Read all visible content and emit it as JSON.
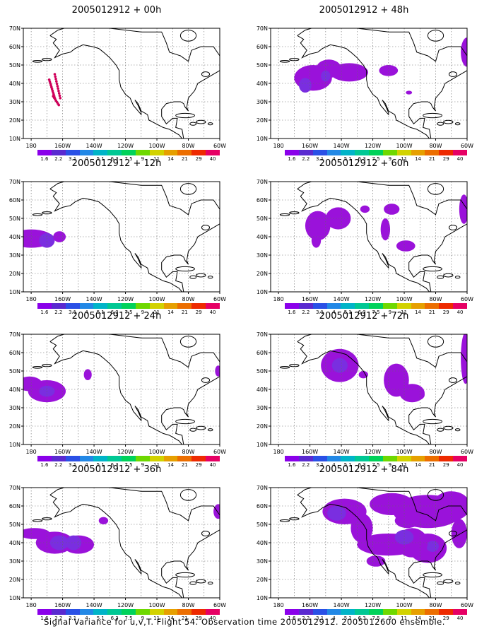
{
  "colors": {
    "scale": [
      "#8a00ea",
      "#5a2ad0",
      "#2a50e6",
      "#2288e6",
      "#00b4c8",
      "#00c894",
      "#00d25a",
      "#6ed800",
      "#d2d200",
      "#e6a000",
      "#ec6e00",
      "#ee2a00",
      "#e60064"
    ],
    "field": "#9a12da",
    "field_core": "#7a2ee0",
    "obs": "#d0005a",
    "land": "#000000",
    "grid": "#666666"
  },
  "colorbar_labels": [
    "1.6",
    "2.2",
    "3.1",
    "4",
    "5.1",
    "6.3",
    "7.5",
    "9",
    "11",
    "14",
    "21",
    "29",
    "40"
  ],
  "map_axes": {
    "lat_labels": [
      "70N",
      "60N",
      "50N",
      "40N",
      "30N",
      "20N",
      "10N"
    ],
    "lon_labels": [
      "180",
      "160W",
      "140W",
      "120W",
      "100W",
      "80W",
      "60W"
    ]
  },
  "panels": [
    {
      "title": "2005012912 + 00h"
    },
    {
      "title": "2005012912 + 12h"
    },
    {
      "title": "2005012912 + 24h"
    },
    {
      "title": "2005012912 + 36h"
    },
    {
      "title": "2005012912 + 48h"
    },
    {
      "title": "2005012912 + 60h"
    },
    {
      "title": "2005012912 + 72h"
    },
    {
      "title": "2005012912 + 84h"
    }
  ],
  "footer": "Signal Variance for u,v,T. Flight 54. Observation time 2005012912. 2005012600 ensemble."
}
